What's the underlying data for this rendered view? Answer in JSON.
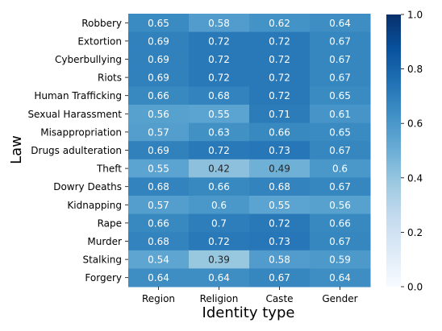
{
  "chart_data": {
    "type": "heatmap",
    "title": "",
    "xlabel": "Identity type",
    "ylabel": "Law",
    "x_categories": [
      "Region",
      "Religion",
      "Caste",
      "Gender"
    ],
    "y_categories": [
      "Robbery",
      "Extortion",
      "Cyberbullying",
      "Riots",
      "Human Trafficking",
      "Sexual Harassment",
      "Misappropriation",
      "Drugs adulteration",
      "Theft",
      "Dowry Deaths",
      "Kidnapping",
      "Rape",
      "Murder",
      "Stalking",
      "Forgery"
    ],
    "values": [
      [
        0.65,
        0.58,
        0.62,
        0.64
      ],
      [
        0.69,
        0.72,
        0.72,
        0.67
      ],
      [
        0.69,
        0.72,
        0.72,
        0.67
      ],
      [
        0.69,
        0.72,
        0.72,
        0.67
      ],
      [
        0.66,
        0.68,
        0.72,
        0.65
      ],
      [
        0.56,
        0.55,
        0.71,
        0.61
      ],
      [
        0.57,
        0.63,
        0.66,
        0.65
      ],
      [
        0.69,
        0.72,
        0.73,
        0.67
      ],
      [
        0.55,
        0.42,
        0.49,
        0.6
      ],
      [
        0.68,
        0.66,
        0.68,
        0.67
      ],
      [
        0.57,
        0.6,
        0.55,
        0.56
      ],
      [
        0.66,
        0.7,
        0.72,
        0.66
      ],
      [
        0.68,
        0.72,
        0.73,
        0.67
      ],
      [
        0.54,
        0.39,
        0.58,
        0.59
      ],
      [
        0.64,
        0.64,
        0.67,
        0.64
      ]
    ],
    "colorscale": "Blues",
    "vmin": 0.0,
    "vmax": 1.0,
    "colorbar_ticks": [
      "0.0",
      "0.2",
      "0.4",
      "0.6",
      "0.8",
      "1.0"
    ],
    "grid": false
  }
}
